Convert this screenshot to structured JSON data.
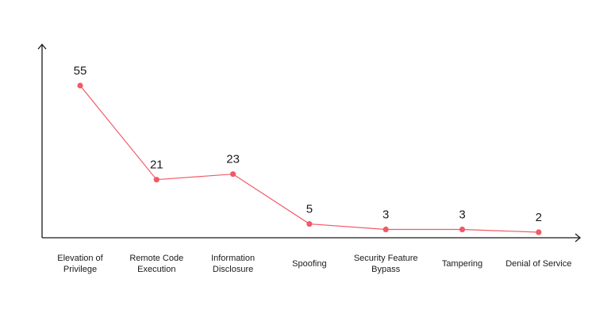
{
  "chart_data": {
    "type": "line",
    "title": "",
    "xlabel": "",
    "ylabel": "",
    "categories": [
      [
        "Elevation of",
        "Privilege"
      ],
      [
        "Remote Code",
        "Execution"
      ],
      [
        "Information",
        "Disclosure"
      ],
      [
        "Spoofing"
      ],
      [
        "Security Feature",
        "Bypass"
      ],
      [
        "Tampering"
      ],
      [
        "Denial of Service"
      ]
    ],
    "values": [
      55,
      21,
      23,
      5,
      3,
      3,
      2
    ],
    "data_labels": [
      "55",
      "21",
      "23",
      "5",
      "3",
      "3",
      "2"
    ],
    "ylim": [
      0,
      62
    ],
    "grid": false,
    "legend": "none",
    "colors": {
      "series": "#f05a67",
      "axis": "#1a1a1a"
    }
  }
}
